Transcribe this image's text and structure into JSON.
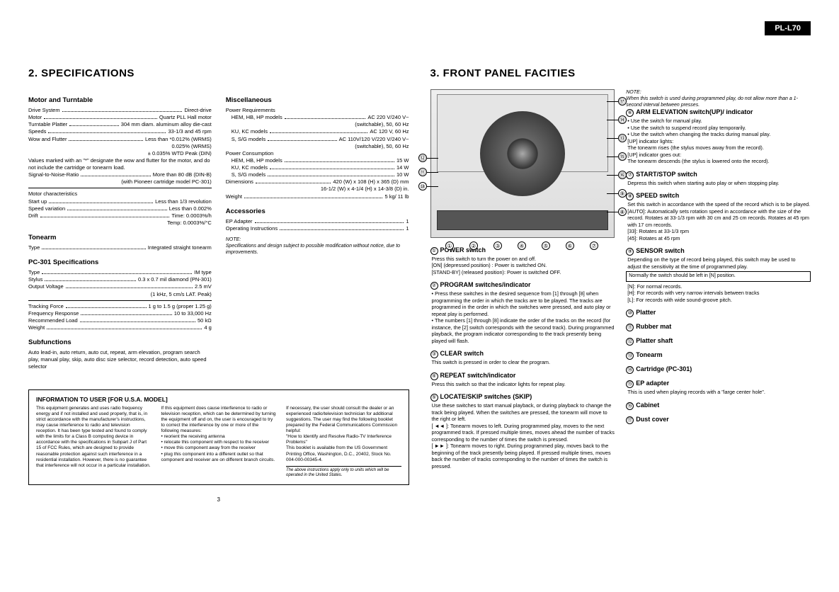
{
  "model": "PL-L70",
  "sections": {
    "specs_title": "2. SPECIFICATIONS",
    "front_title": "3. FRONT PANEL FACITIES"
  },
  "specs": {
    "motor_turntable": {
      "head": "Motor and Turntable",
      "rows": [
        [
          "Drive System",
          "Direct-drive"
        ],
        [
          "Motor",
          "Quartz PLL Hall motor"
        ],
        [
          "Turntable Platter",
          "304 mm diam. aluminum alloy die-cast"
        ],
        [
          "Speeds",
          "33-1/3 and 45 rpm"
        ],
        [
          "Wow and Flutter",
          "Less than *0.012% (WRMS)"
        ]
      ],
      "extra1": "0.025% (WRMS)",
      "extra2": "± 0.035% WTD Peak (DIN)",
      "note": "Values marked with an \"*\" designate the wow and flutter for the motor, and do not include the cartridge or tonearm load.",
      "snr": [
        "Signal-to-Noise-Ratio",
        "More than 80 dB (DIN-B)"
      ],
      "snr_extra": "(with Pioneer cartridge model PC-301)"
    },
    "motor_char": {
      "head": "Motor characteristics",
      "rows": [
        [
          "Start up",
          "Less than 1/3 revolution"
        ],
        [
          "Speed variation",
          "Less than 0.002%"
        ],
        [
          "Drift",
          "Time: 0.0003%/h"
        ]
      ],
      "extra": "Temp: 0.0003%/°C"
    },
    "tonearm": {
      "head": "Tonearm",
      "rows": [
        [
          "Type",
          "Integrated straight tonearm"
        ]
      ]
    },
    "pc301": {
      "head": "PC-301 Specifications",
      "rows": [
        [
          "Type",
          "IM type"
        ],
        [
          "Stylus",
          "0.3 x 0.7 mil diamond (PN-301)"
        ],
        [
          "Output Voltage",
          "2.5 mV"
        ]
      ],
      "extra1": "(1 kHz, 5 cm/s LAT. Peak)",
      "rows2": [
        [
          "Tracking Force",
          "1 g to 1.5 g (proper 1.25 g)"
        ],
        [
          "Frequency Response",
          "10 to 33,000 Hz"
        ],
        [
          "Recommended Load",
          "50 kΩ"
        ],
        [
          "Weight",
          "4 g"
        ]
      ]
    },
    "subfunctions": {
      "head": "Subfunctions",
      "body": "Auto lead-in, auto return, auto cut, repeat, arm elevation, program search play, manual play, skip, auto disc size selector, record detection, auto speed selector"
    },
    "misc": {
      "head": "Miscellaneous",
      "power_req_label": "Power Requirements",
      "power_req": [
        [
          "HEM, HB, HP models",
          "AC 220 V/240 V~"
        ],
        [
          "",
          "(switchable), 50, 60 Hz"
        ],
        [
          "KU, KC models",
          "AC 120 V, 60 Hz"
        ],
        [
          "S, S/G models",
          "AC 110V/120 V/220 V/240 V~"
        ],
        [
          "",
          "(switchable), 50, 60 Hz"
        ]
      ],
      "power_cons_label": "Power Consumption",
      "power_cons": [
        [
          "HEM, HB, HP models",
          "15 W"
        ],
        [
          "KU, KC models",
          "14 W"
        ],
        [
          "S, S/G models",
          "10 W"
        ]
      ],
      "dims": [
        "Dimensions",
        "420 (W) x 108 (H) x 365 (D) mm"
      ],
      "dims_extra": "16-1/2 (W) x 4-1/4 (H) x 14-3/8 (D) in.",
      "weight": [
        "Weight",
        "5 kg/ 11 lb"
      ]
    },
    "accessories": {
      "head": "Accessories",
      "rows": [
        [
          "EP Adapter",
          "1"
        ],
        [
          "Operating Instructions",
          "1"
        ]
      ]
    },
    "spec_note": "NOTE:\nSpecifications and design subject to possible modification without notice, due to improvements."
  },
  "info_box": {
    "title": "INFORMATION TO USER  [FOR U.S.A. MODEL]",
    "col1": "This equipment generates and uses radio frequency energy and if not installed and used properly, that is, in strict accordance with the manufacturer's instructions, may cause interference to radio and television reception. It has been type tested and found to comply with the limits for a Class B computing device in accordance with the specifications in Subpart J of Part 15 of FCC Rules, which are designed to provide reasonable protection against such interference in a residential installation. However, there is no guarantee that interference will not occur in a particular installation.",
    "col2": "If this equipment does cause interference to radio or television reception, which can be determined by turning the equipment off and on, the user is encouraged to try to correct the interference by one or more of the following measures:\n• reorient the receiving antenna\n• relocate this component with respect to the receiver\n• move this component away from the receiver\n• plug this component into a different outlet so that component and receiver are on different branch circuits.",
    "col3": "If necessary, the user should consult the dealer or an experienced radio/television technician for additional suggestions. The user may find the following booklet prepared by the Federal Communications Commission helpful:\n\"How to Identify and Resolve Radio-TV Interference Problems\"\nThis booklet is available from the US Government Printing Office, Washington, D.C., 20402, Stock No. 004-000-00345-4.",
    "footnote": "The above instructions apply only to units which will be operated in the United States."
  },
  "page_number": "3",
  "front_note": "NOTE:\nWhen this switch is used during programmed play, do not allow more than a 1-second interval between presses.",
  "front": [
    {
      "n": "①",
      "t": "POWER switch",
      "b": "Press this switch to turn the power on and off.\n[ON] (depressed position) : Power is switched ON.\n[STAND-BY] (released position): Power is switched OFF."
    },
    {
      "n": "②",
      "t": "PROGRAM switches/indicator",
      "b": "• Press these switches in the desired sequence from [1] through [8] when programming the order in which the tracks are to be played. The tracks are programmed in the order in which the switches were pressed, and auto play or repeat play is performed.\n• The numbers [1] through [8] indicate the order of the tracks on the record (for instance, the [2] switch corresponds with the second track). During programmed playback, the program indicator corresponding to the track presently being played will flash."
    },
    {
      "n": "③",
      "t": "CLEAR switch",
      "b": "This switch is pressed in order to clear the program."
    },
    {
      "n": "④",
      "t": "REPEAT switch/indicator",
      "b": "Press this switch so that the indicator lights for repeat play."
    },
    {
      "n": "⑤",
      "t": "LOCATE/SKIP switches (SKIP)",
      "b": "Use these switches to start manual playback, or during playback to change the track being played. When the switches are pressed, the tonearm will move to the right or left.\n[ ◄◄ ]: Tonearm moves to left. During programmed play, moves to the next programmed track. If pressed multiple times, moves ahead the number of tracks corresponding to the number of times the switch is pressed.\n[ ►► ]: Tonearm moves to right. During programmed play, moves back to the beginning of the track presently being played. If pressed multiple times, moves back the number of tracks corresponding to the number of times the switch is pressed."
    },
    {
      "n": "⑥",
      "t": "ARM ELEVATION switch(UP)/ indicator",
      "b": "• Use the switch for manual play.\n• Use the switch to suspend record play temporarily.\n• Use the switch when changing the tracks during manual play.\n[UP] indicator lights:\nThe tonearm rises (the stylus moves away from the record).\n[UP] indicator goes out:\nThe tonearm descends (the stylus is lowered onto the record)."
    },
    {
      "n": "⑦",
      "t": "START/STOP switch",
      "b": "Depress this switch when starting auto play or when stopping play."
    },
    {
      "n": "⑧",
      "t": "SPEED switch",
      "b": "Set this switch in accordance with the speed of the record which is to be played.\n[AUTO]: Automatically sets rotation speed in accordance with the size of the record. Rotates at 33-1/3 rpm with 30 cm and 25 cm records. Rotates at 45 rpm with 17 cm records.\n[33]:      Rotates at 33-1/3 rpm\n[45]:      Rotates at 45 rpm"
    },
    {
      "n": "⑨",
      "t": "SENSOR switch",
      "b": "Depending on the type of record being played, this switch may be used to adjust the sensitivity at the time of programmed play.",
      "box": "Normally the switch should be left in [N] position.",
      "b2": "[N]: For normal records.\n[H]: For records with very narrow intervals between tracks\n[L]: For records with wide sound-groove pitch."
    },
    {
      "n": "⑩",
      "t": "Platter"
    },
    {
      "n": "⑪",
      "t": "Rubber mat"
    },
    {
      "n": "⑫",
      "t": "Platter shaft"
    },
    {
      "n": "⑬",
      "t": "Tonearm"
    },
    {
      "n": "⑭",
      "t": "Cartridge (PC-301)"
    },
    {
      "n": "⑮",
      "t": "EP adapter",
      "b": "This is used when playing records with a \"large center hole\"."
    },
    {
      "n": "⑯",
      "t": "Cabinet"
    },
    {
      "n": "⑰",
      "t": "Dust cover"
    }
  ],
  "callouts_right": [
    "⑰",
    "⑭",
    "⑬",
    "⑮",
    "⑯",
    "⑨",
    "⑧"
  ],
  "callouts_left": [
    "⑫",
    "⑪",
    "⑩"
  ],
  "callouts_bottom": [
    "①",
    "②",
    "③",
    "④",
    "⑤",
    "⑥",
    "⑦"
  ]
}
